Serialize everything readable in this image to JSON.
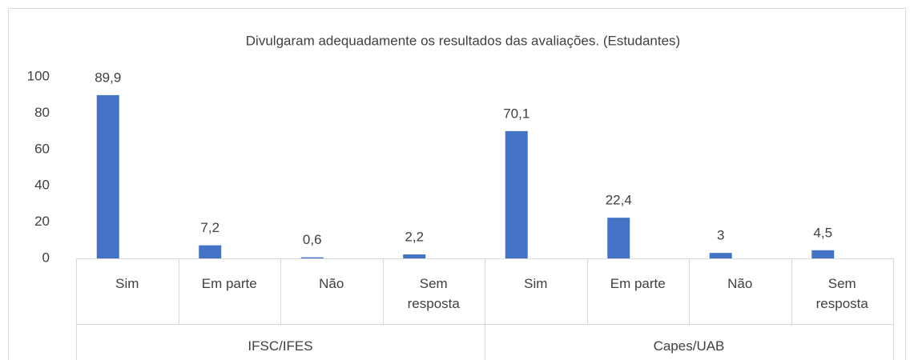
{
  "chart_data": {
    "type": "bar",
    "title": "Divulgaram adequadamente os resultados das avaliações. (Estudantes)",
    "categories": [
      "Sim",
      "Em parte",
      "Não",
      "Sem resposta",
      "Sim",
      "Em parte",
      "Não",
      "Sem resposta"
    ],
    "group_labels": [
      "IFSC/IFES",
      "Capes/UAB"
    ],
    "values": [
      89.9,
      7.2,
      0.6,
      2.2,
      70.1,
      22.4,
      3,
      4.5
    ],
    "value_labels": [
      "89,9",
      "7,2",
      "0,6",
      "2,2",
      "70,1",
      "22,4",
      "3",
      "4,5"
    ],
    "color": "#4472c4",
    "ylim": [
      0,
      100
    ],
    "yticks": [
      0,
      20,
      40,
      60,
      80,
      100
    ],
    "grid": false
  }
}
